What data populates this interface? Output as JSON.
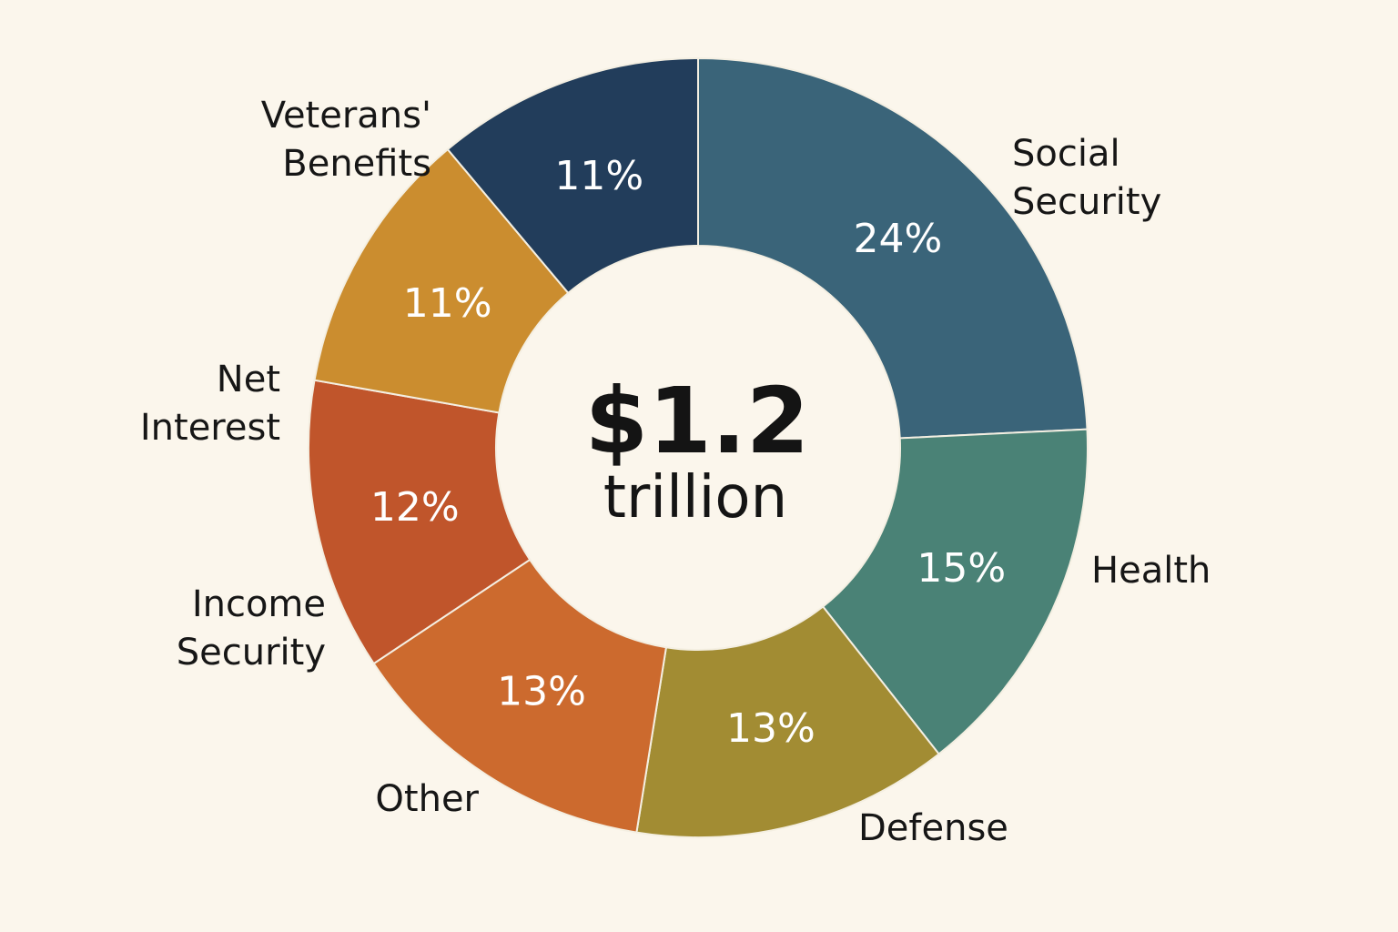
{
  "chart_data": {
    "type": "pie",
    "subtype": "donut",
    "center_text": {
      "amount": "$1.2",
      "unit": "trillion"
    },
    "start_angle_deg": 0,
    "direction": "clockwise",
    "legend": "none",
    "slices": [
      {
        "label": [
          "Social",
          "Security"
        ],
        "value": 24,
        "value_label": "24%",
        "color": "#3a6479"
      },
      {
        "label": [
          "Health"
        ],
        "value": 15,
        "value_label": "15%",
        "color": "#4a8276"
      },
      {
        "label": [
          "Defense"
        ],
        "value": 13,
        "value_label": "13%",
        "color": "#a28c33"
      },
      {
        "label": [
          "Other"
        ],
        "value": 13,
        "value_label": "13%",
        "color": "#cc6a2e"
      },
      {
        "label": [
          "Income",
          "Security"
        ],
        "value": 12,
        "value_label": "12%",
        "color": "#c0552b"
      },
      {
        "label": [
          "Net",
          "Interest"
        ],
        "value": 11,
        "value_label": "11%",
        "color": "#cb8d2f"
      },
      {
        "label": [
          "Veterans'",
          "Benefits"
        ],
        "value": 11,
        "value_label": "11%",
        "color": "#223d5b"
      }
    ]
  }
}
